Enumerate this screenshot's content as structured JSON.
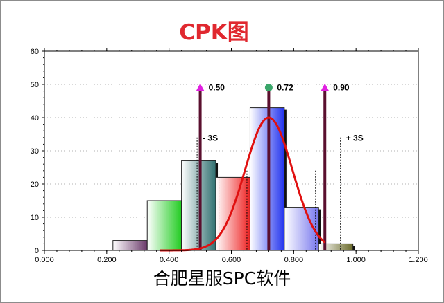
{
  "title": "CPK图",
  "footer": "合肥星服SPC软件",
  "colors": {
    "title": "#e0282f",
    "curve": "#e01010",
    "marker_line": "#5a0f2e",
    "spec_marker": "#e020e0",
    "center_marker": "#3aa66a",
    "gridline": "#b0b0b0"
  },
  "chart_data": {
    "type": "bar",
    "xlim": [
      0,
      1.2
    ],
    "ylim": [
      0,
      60
    ],
    "x_ticks": [
      "0.000",
      "0.200",
      "0.400",
      "0.600",
      "0.800",
      "1.000",
      "1.200"
    ],
    "y_ticks": [
      "0",
      "10",
      "20",
      "30",
      "40",
      "50",
      "60"
    ],
    "grid": true,
    "bins": [
      {
        "x0": 0.22,
        "x1": 0.33,
        "value": 3,
        "color": "#6a3a6a"
      },
      {
        "x0": 0.33,
        "x1": 0.44,
        "value": 15,
        "color": "#22cc22"
      },
      {
        "x0": 0.44,
        "x1": 0.55,
        "value": 27,
        "color": "#2f6f6f"
      },
      {
        "x0": 0.55,
        "x1": 0.66,
        "value": 22,
        "color": "#ee2222"
      },
      {
        "x0": 0.66,
        "x1": 0.77,
        "value": 43,
        "color": "#2233ee"
      },
      {
        "x0": 0.77,
        "x1": 0.88,
        "value": 13,
        "color": "#7777ee"
      },
      {
        "x0": 0.88,
        "x1": 0.99,
        "value": 2,
        "color": "#6a6a2a"
      }
    ],
    "normal_curve": {
      "mean": 0.72,
      "sd": 0.076,
      "peak": 40
    },
    "markers": [
      {
        "label": "0.50",
        "x": 0.5,
        "kind": "spec"
      },
      {
        "label": "0.72",
        "x": 0.72,
        "kind": "center"
      },
      {
        "label": "0.90",
        "x": 0.9,
        "kind": "spec"
      }
    ],
    "sigma_labels": [
      {
        "label": "- 3S",
        "x": 0.49
      },
      {
        "label": "+ 3S",
        "x": 0.95
      }
    ]
  }
}
